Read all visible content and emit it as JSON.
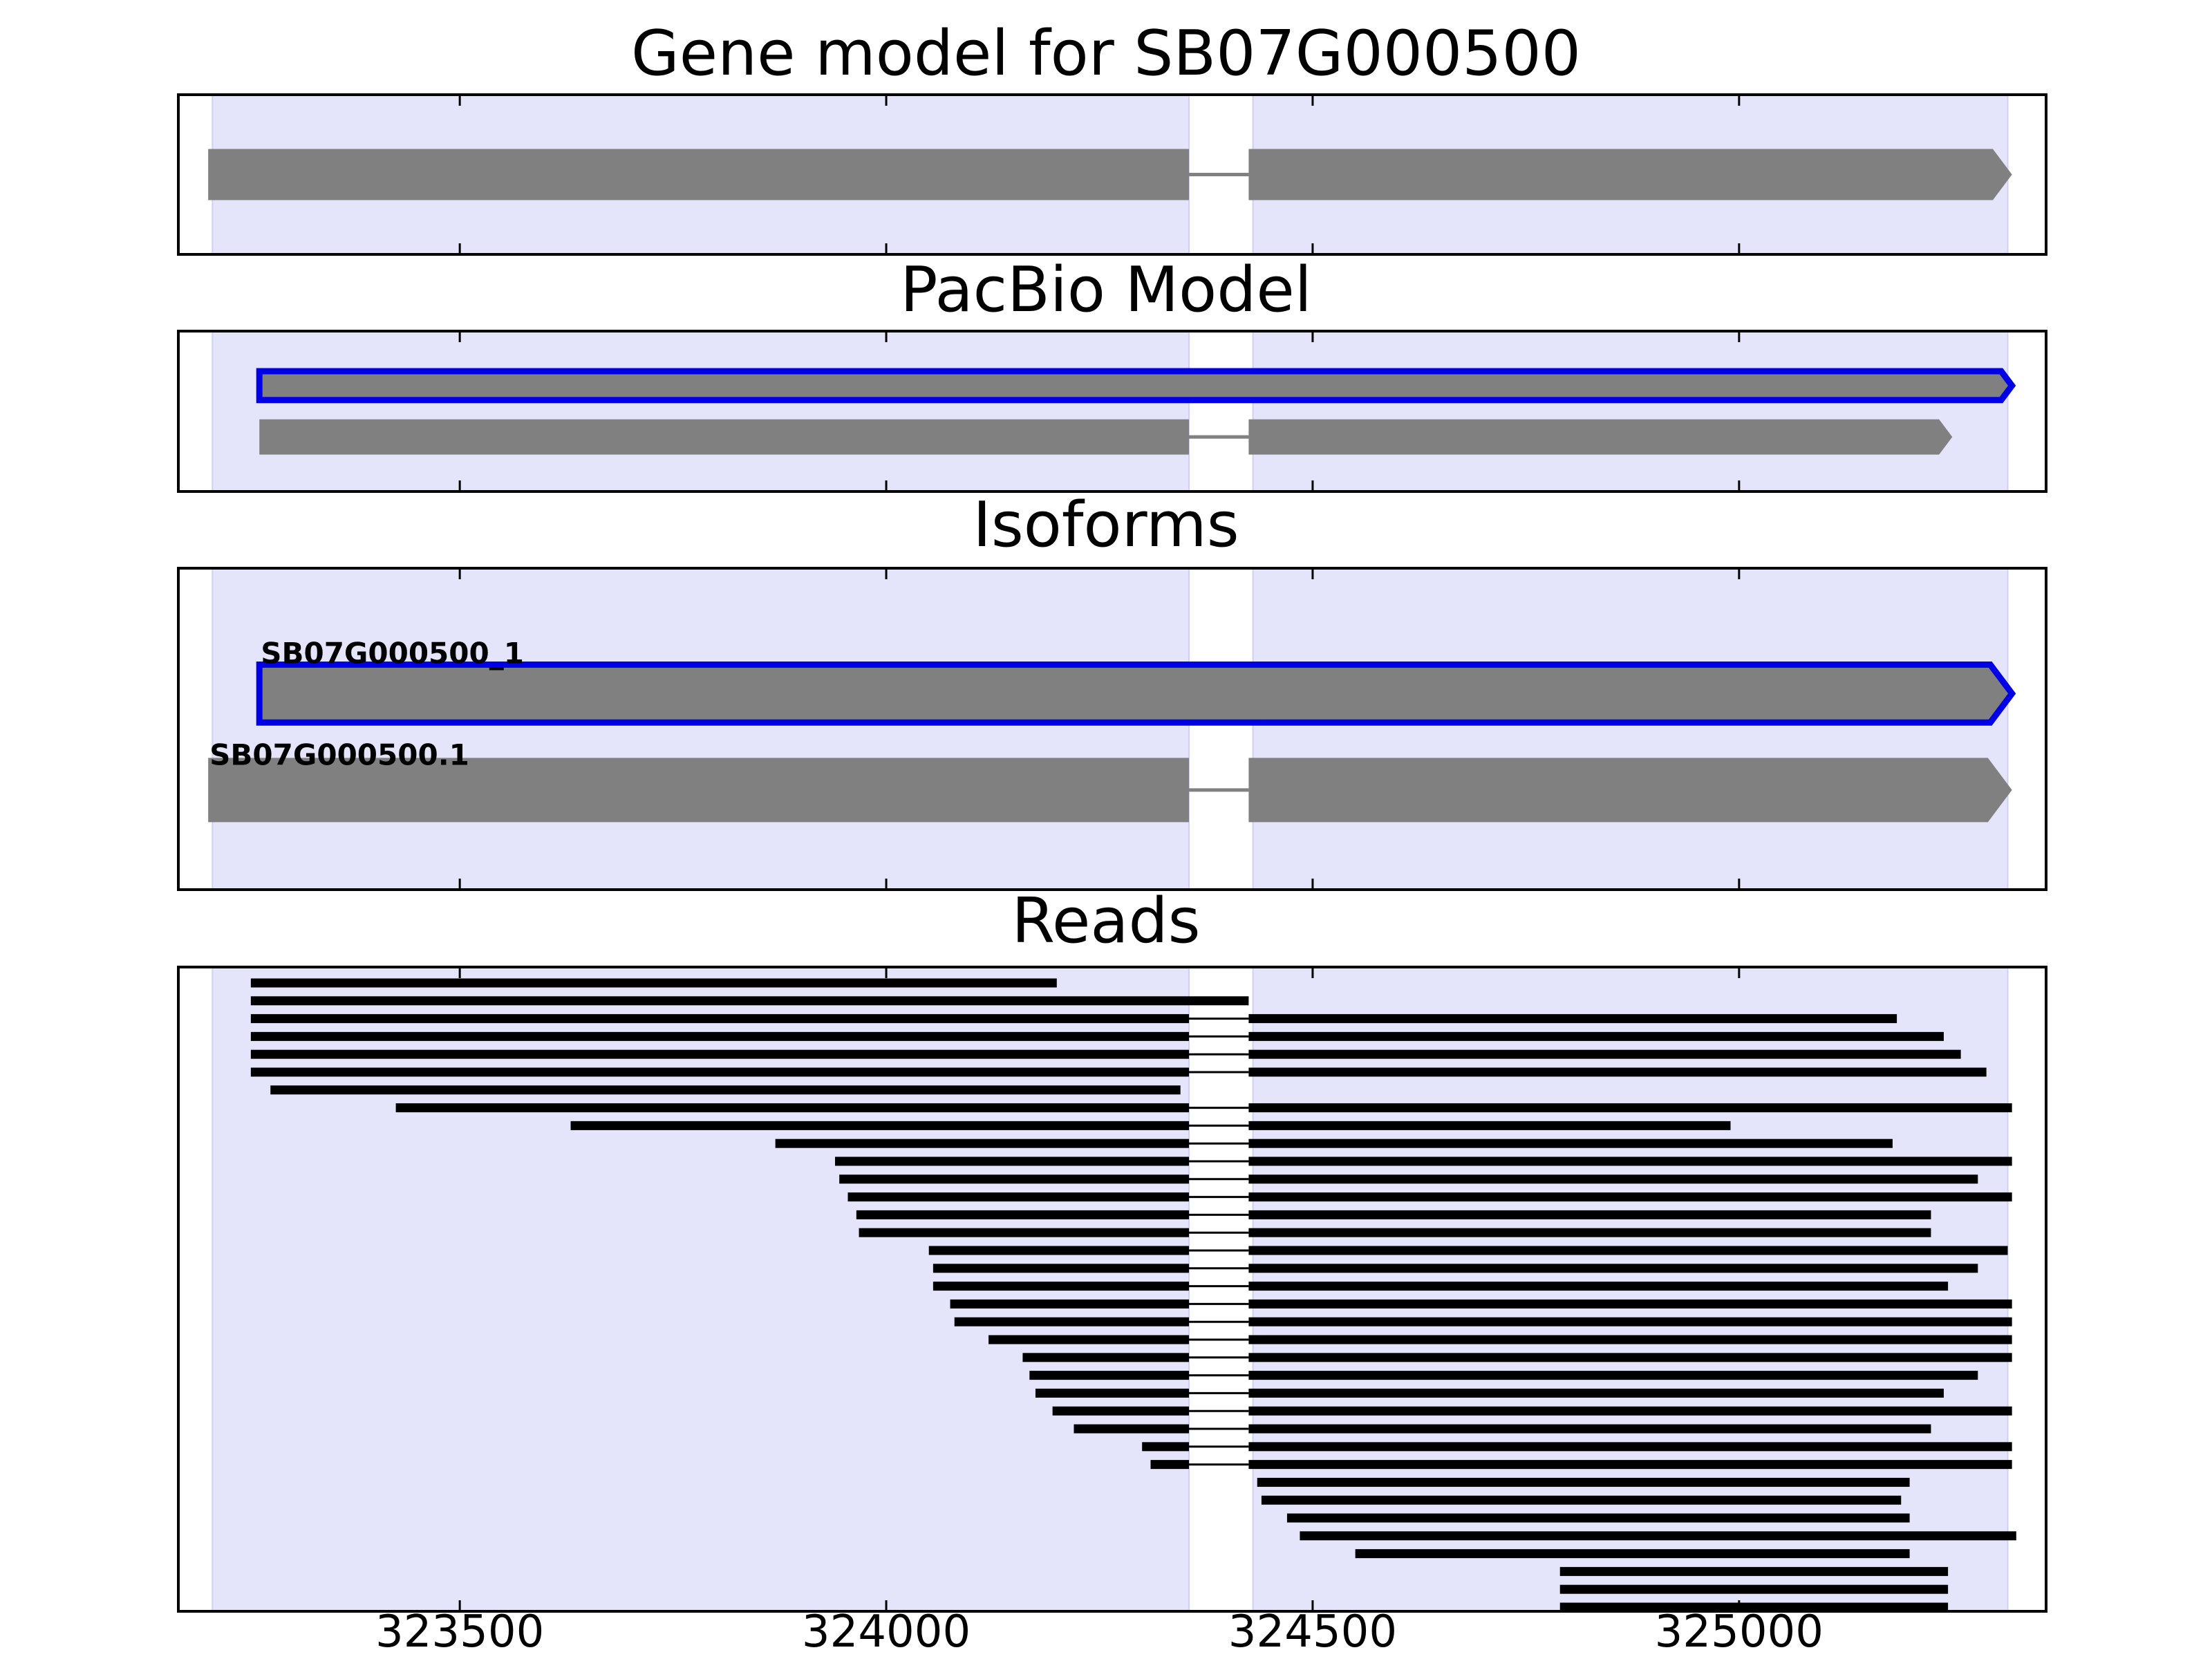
{
  "chart_data": {
    "type": "gene-track",
    "xlim": [
      323170,
      325360
    ],
    "xticks": [
      323500,
      324000,
      324500,
      325000
    ],
    "xtick_labels": [
      "323500",
      "324000",
      "324500",
      "325000"
    ],
    "colors": {
      "exon_region": "#e4e4fb",
      "feature": "#808080",
      "highlight_outline": "#0000e6",
      "read": "#000000",
      "intron_line": "#808080"
    },
    "exon_regions": [
      [
        323210,
        324355
      ],
      [
        324430,
        325315
      ]
    ],
    "panels": [
      {
        "id": "gene-model",
        "title": "Gene model for SB07G000500",
        "ylim": [
          0,
          1
        ],
        "features": [
          {
            "label": "",
            "highlight": false,
            "y": 0.5,
            "height": 0.32,
            "exons": [
              [
                323205,
                324355
              ],
              [
                324425,
                325320
              ]
            ]
          }
        ]
      },
      {
        "id": "pacbio-model",
        "title": "PacBio Model",
        "ylim": [
          0,
          1
        ],
        "features": [
          {
            "label": "",
            "highlight": true,
            "y": 0.66,
            "height": 0.18,
            "exons": [
              [
                323265,
                325320
              ]
            ]
          },
          {
            "label": "",
            "highlight": false,
            "y": 0.34,
            "height": 0.22,
            "exons": [
              [
                323265,
                324355
              ],
              [
                324425,
                325250
              ]
            ]
          }
        ]
      },
      {
        "id": "isoforms",
        "title": "Isoforms",
        "ylim": [
          0,
          1
        ],
        "features": [
          {
            "label": "SB07G000500_1",
            "highlight": true,
            "y": 0.61,
            "height": 0.18,
            "exons": [
              [
                323265,
                325320
              ]
            ]
          },
          {
            "label": "SB07G000500.1",
            "highlight": false,
            "y": 0.31,
            "height": 0.2,
            "exons": [
              [
                323205,
                324355
              ],
              [
                324425,
                325320
              ]
            ]
          }
        ]
      },
      {
        "id": "reads",
        "title": "Reads",
        "read_count": 36,
        "reads": [
          [
            [
              323255,
              324200
            ]
          ],
          [
            [
              323255,
              324425
            ]
          ],
          [
            [
              323255,
              324355
            ],
            [
              324425,
              325185
            ]
          ],
          [
            [
              323255,
              324355
            ],
            [
              324425,
              325240
            ]
          ],
          [
            [
              323255,
              324355
            ],
            [
              324425,
              325260
            ]
          ],
          [
            [
              323255,
              324355
            ],
            [
              324425,
              325290
            ]
          ],
          [
            [
              323278,
              324345
            ]
          ],
          [
            [
              323425,
              324355
            ],
            [
              324425,
              325320
            ]
          ],
          [
            [
              323630,
              324355
            ],
            [
              324425,
              324990
            ]
          ],
          [
            [
              323870,
              324355
            ],
            [
              324425,
              325180
            ]
          ],
          [
            [
              323940,
              324355
            ],
            [
              324425,
              325320
            ]
          ],
          [
            [
              323945,
              324355
            ],
            [
              324425,
              325280
            ]
          ],
          [
            [
              323955,
              324355
            ],
            [
              324425,
              325320
            ]
          ],
          [
            [
              323965,
              324355
            ],
            [
              324425,
              325225
            ]
          ],
          [
            [
              323968,
              324355
            ],
            [
              324425,
              325225
            ]
          ],
          [
            [
              324050,
              324355
            ],
            [
              324425,
              325315
            ]
          ],
          [
            [
              324055,
              324355
            ],
            [
              324425,
              325280
            ]
          ],
          [
            [
              324055,
              324355
            ],
            [
              324425,
              325245
            ]
          ],
          [
            [
              324075,
              324355
            ],
            [
              324425,
              325320
            ]
          ],
          [
            [
              324080,
              324355
            ],
            [
              324425,
              325320
            ]
          ],
          [
            [
              324120,
              324355
            ],
            [
              324425,
              325320
            ]
          ],
          [
            [
              324160,
              324355
            ],
            [
              324425,
              325320
            ]
          ],
          [
            [
              324168,
              324355
            ],
            [
              324425,
              325280
            ]
          ],
          [
            [
              324175,
              324355
            ],
            [
              324425,
              325240
            ]
          ],
          [
            [
              324195,
              324355
            ],
            [
              324425,
              325320
            ]
          ],
          [
            [
              324220,
              324355
            ],
            [
              324425,
              325225
            ]
          ],
          [
            [
              324300,
              324355
            ],
            [
              324425,
              325320
            ]
          ],
          [
            [
              324310,
              324355
            ],
            [
              324425,
              325320
            ]
          ],
          [
            [
              324435,
              325200
            ]
          ],
          [
            [
              324440,
              325190
            ]
          ],
          [
            [
              324470,
              325200
            ]
          ],
          [
            [
              324485,
              325325
            ]
          ],
          [
            [
              324550,
              325200
            ]
          ],
          [
            [
              324790,
              325245
            ]
          ],
          [
            [
              324790,
              325245
            ]
          ],
          [
            [
              324790,
              325245
            ]
          ]
        ]
      }
    ]
  }
}
